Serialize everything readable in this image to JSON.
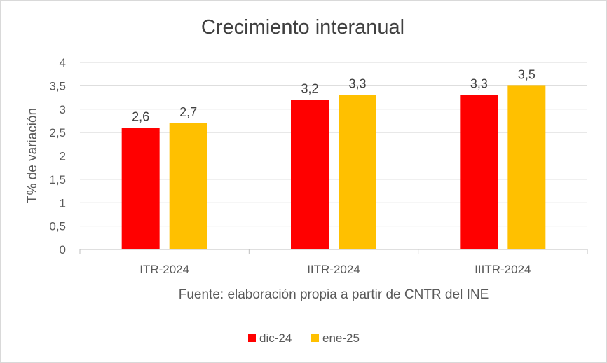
{
  "chart_data": {
    "type": "bar",
    "title": "Crecimiento interanual",
    "xlabel": "Fuente: elaboración propia a partir de CNTR del INE",
    "ylabel": "T% de variación",
    "categories": [
      "ITR-2024",
      "IITR-2024",
      "IIITR-2024"
    ],
    "series": [
      {
        "name": "dic-24",
        "color": "#ff0000",
        "values": [
          2.6,
          3.2,
          3.3
        ],
        "labels": [
          "2,6",
          "3,2",
          "3,3"
        ]
      },
      {
        "name": "ene-25",
        "color": "#ffc000",
        "values": [
          2.7,
          3.3,
          3.5
        ],
        "labels": [
          "2,7",
          "3,3",
          "3,5"
        ]
      }
    ],
    "ylim": [
      0,
      4
    ],
    "yticks": [
      0,
      0.5,
      1,
      1.5,
      2,
      2.5,
      3,
      3.5,
      4
    ],
    "ytick_labels": [
      "0",
      "0,5",
      "1",
      "1,5",
      "2",
      "2,5",
      "3",
      "3,5",
      "4"
    ],
    "grid": true,
    "legend_position": "bottom"
  }
}
